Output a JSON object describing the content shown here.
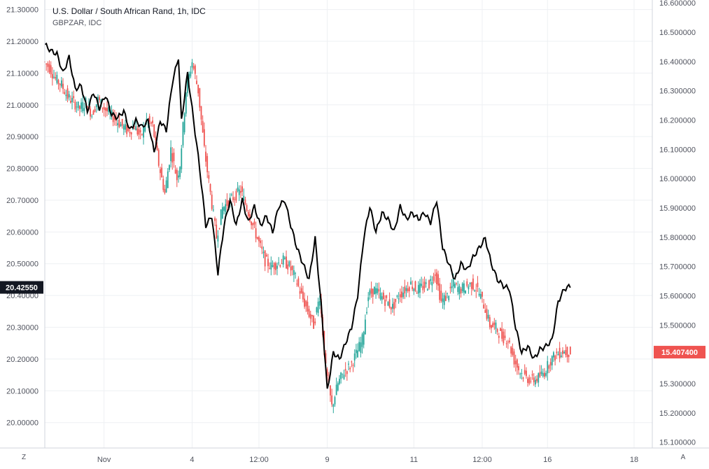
{
  "colors": {
    "up": "#26a69a",
    "down": "#ef5350",
    "overlay_line": "#000000",
    "grid": "#eef0f3",
    "axis_text": "#50535e",
    "last_price_bg": "#131722",
    "overlay_last_bg": "#ef5350"
  },
  "legend": {
    "main": "U.S. Dollar / South African Rand, 1h, IDC",
    "overlay": "GBPZAR, IDC"
  },
  "corner_buttons": {
    "left": "Z",
    "right": "A"
  },
  "chart_data": {
    "type": "candlestick+line",
    "interval": "1h",
    "x_ticks": [
      "Nov",
      "4",
      "12:00",
      "9",
      "11",
      "12:00",
      "16",
      "18"
    ],
    "left_axis": {
      "ticks": [
        "21.30000",
        "21.20000",
        "21.10000",
        "21.00000",
        "20.90000",
        "20.80000",
        "20.70000",
        "20.60000",
        "20.50000",
        "20.40000",
        "20.30000",
        "20.20000",
        "20.10000",
        "20.00000"
      ],
      "range": [
        19.92,
        21.33
      ],
      "last_price_label": "20.42550"
    },
    "right_axis": {
      "ticks": [
        "16.600000",
        "16.500000",
        "16.400000",
        "16.300000",
        "16.200000",
        "16.100000",
        "16.000000",
        "15.900000",
        "15.800000",
        "15.700000",
        "15.600000",
        "15.500000",
        "15.400000",
        "15.300000",
        "15.200000",
        "15.100000"
      ],
      "range": [
        15.08,
        16.61
      ],
      "last_price_label": "15.407400"
    },
    "series": [
      {
        "name": "GBPZAR, IDC",
        "kind": "line",
        "axis": "left",
        "points": [
          [
            0,
            21.19
          ],
          [
            4,
            21.17
          ],
          [
            8,
            21.16
          ],
          [
            12,
            21.1
          ],
          [
            16,
            21.15
          ],
          [
            20,
            21.05
          ],
          [
            24,
            21.06
          ],
          [
            28,
            20.98
          ],
          [
            32,
            21.04
          ],
          [
            36,
            20.99
          ],
          [
            40,
            21.03
          ],
          [
            44,
            20.97
          ],
          [
            48,
            20.96
          ],
          [
            52,
            20.98
          ],
          [
            56,
            20.92
          ],
          [
            60,
            20.95
          ],
          [
            64,
            20.93
          ],
          [
            68,
            20.95
          ],
          [
            72,
            20.85
          ],
          [
            76,
            20.95
          ],
          [
            80,
            20.92
          ],
          [
            84,
            21.07
          ],
          [
            88,
            21.15
          ],
          [
            90,
            20.95
          ],
          [
            94,
            21.1
          ],
          [
            98,
            20.95
          ],
          [
            102,
            20.8
          ],
          [
            106,
            20.62
          ],
          [
            110,
            20.65
          ],
          [
            114,
            20.47
          ],
          [
            118,
            20.62
          ],
          [
            122,
            20.7
          ],
          [
            126,
            20.62
          ],
          [
            130,
            20.7
          ],
          [
            134,
            20.63
          ],
          [
            138,
            20.68
          ],
          [
            142,
            20.62
          ],
          [
            146,
            20.65
          ],
          [
            150,
            20.6
          ],
          [
            154,
            20.68
          ],
          [
            158,
            20.7
          ],
          [
            162,
            20.62
          ],
          [
            166,
            20.55
          ],
          [
            170,
            20.5
          ],
          [
            174,
            20.45
          ],
          [
            178,
            20.58
          ],
          [
            182,
            20.37
          ],
          [
            186,
            20.1
          ],
          [
            190,
            20.22
          ],
          [
            194,
            20.2
          ],
          [
            198,
            20.25
          ],
          [
            202,
            20.3
          ],
          [
            206,
            20.4
          ],
          [
            210,
            20.58
          ],
          [
            214,
            20.68
          ],
          [
            218,
            20.6
          ],
          [
            222,
            20.66
          ],
          [
            226,
            20.64
          ],
          [
            230,
            20.6
          ],
          [
            234,
            20.68
          ],
          [
            238,
            20.64
          ],
          [
            242,
            20.66
          ],
          [
            246,
            20.64
          ],
          [
            250,
            20.66
          ],
          [
            254,
            20.63
          ],
          [
            258,
            20.7
          ],
          [
            262,
            20.55
          ],
          [
            266,
            20.5
          ],
          [
            270,
            20.45
          ],
          [
            274,
            20.5
          ],
          [
            278,
            20.48
          ],
          [
            282,
            20.52
          ],
          [
            286,
            20.55
          ],
          [
            290,
            20.58
          ],
          [
            294,
            20.5
          ],
          [
            298,
            20.45
          ],
          [
            302,
            20.43
          ],
          [
            306,
            20.42
          ],
          [
            310,
            20.3
          ],
          [
            314,
            20.22
          ],
          [
            318,
            20.24
          ],
          [
            322,
            20.2
          ],
          [
            326,
            20.23
          ],
          [
            330,
            20.24
          ],
          [
            334,
            20.26
          ],
          [
            338,
            20.38
          ],
          [
            342,
            20.42
          ],
          [
            346,
            20.43
          ]
        ]
      },
      {
        "name": "U.S. Dollar / South African Rand, 1h, IDC",
        "kind": "candles",
        "axis": "right",
        "points": [
          [
            0,
            16.4
          ],
          [
            4,
            16.38
          ],
          [
            8,
            16.34
          ],
          [
            12,
            16.32
          ],
          [
            16,
            16.28
          ],
          [
            20,
            16.26
          ],
          [
            24,
            16.24
          ],
          [
            28,
            16.26
          ],
          [
            32,
            16.22
          ],
          [
            36,
            16.27
          ],
          [
            40,
            16.24
          ],
          [
            44,
            16.22
          ],
          [
            48,
            16.2
          ],
          [
            52,
            16.18
          ],
          [
            56,
            16.16
          ],
          [
            60,
            16.18
          ],
          [
            64,
            16.14
          ],
          [
            68,
            16.2
          ],
          [
            72,
            16.18
          ],
          [
            76,
            16.05
          ],
          [
            80,
            15.95
          ],
          [
            84,
            16.1
          ],
          [
            88,
            16.0
          ],
          [
            90,
            16.05
          ],
          [
            94,
            16.3
          ],
          [
            98,
            16.4
          ],
          [
            102,
            16.3
          ],
          [
            106,
            16.1
          ],
          [
            110,
            15.95
          ],
          [
            114,
            15.8
          ],
          [
            118,
            15.9
          ],
          [
            122,
            15.92
          ],
          [
            126,
            15.94
          ],
          [
            130,
            15.96
          ],
          [
            134,
            15.9
          ],
          [
            138,
            15.84
          ],
          [
            142,
            15.78
          ],
          [
            146,
            15.72
          ],
          [
            150,
            15.7
          ],
          [
            154,
            15.71
          ],
          [
            158,
            15.72
          ],
          [
            162,
            15.7
          ],
          [
            166,
            15.66
          ],
          [
            170,
            15.6
          ],
          [
            174,
            15.55
          ],
          [
            178,
            15.5
          ],
          [
            182,
            15.6
          ],
          [
            186,
            15.35
          ],
          [
            190,
            15.22
          ],
          [
            194,
            15.3
          ],
          [
            198,
            15.34
          ],
          [
            202,
            15.36
          ],
          [
            206,
            15.4
          ],
          [
            210,
            15.45
          ],
          [
            214,
            15.6
          ],
          [
            218,
            15.62
          ],
          [
            222,
            15.6
          ],
          [
            226,
            15.58
          ],
          [
            230,
            15.56
          ],
          [
            234,
            15.6
          ],
          [
            238,
            15.62
          ],
          [
            242,
            15.64
          ],
          [
            246,
            15.62
          ],
          [
            250,
            15.63
          ],
          [
            254,
            15.64
          ],
          [
            258,
            15.68
          ],
          [
            262,
            15.58
          ],
          [
            266,
            15.6
          ],
          [
            270,
            15.64
          ],
          [
            274,
            15.62
          ],
          [
            278,
            15.63
          ],
          [
            282,
            15.64
          ],
          [
            286,
            15.62
          ],
          [
            290,
            15.57
          ],
          [
            294,
            15.5
          ],
          [
            298,
            15.49
          ],
          [
            302,
            15.46
          ],
          [
            306,
            15.45
          ],
          [
            310,
            15.38
          ],
          [
            314,
            15.34
          ],
          [
            318,
            15.32
          ],
          [
            322,
            15.31
          ],
          [
            326,
            15.32
          ],
          [
            330,
            15.34
          ],
          [
            334,
            15.38
          ],
          [
            338,
            15.4
          ],
          [
            342,
            15.41
          ],
          [
            346,
            15.407
          ]
        ]
      }
    ]
  }
}
